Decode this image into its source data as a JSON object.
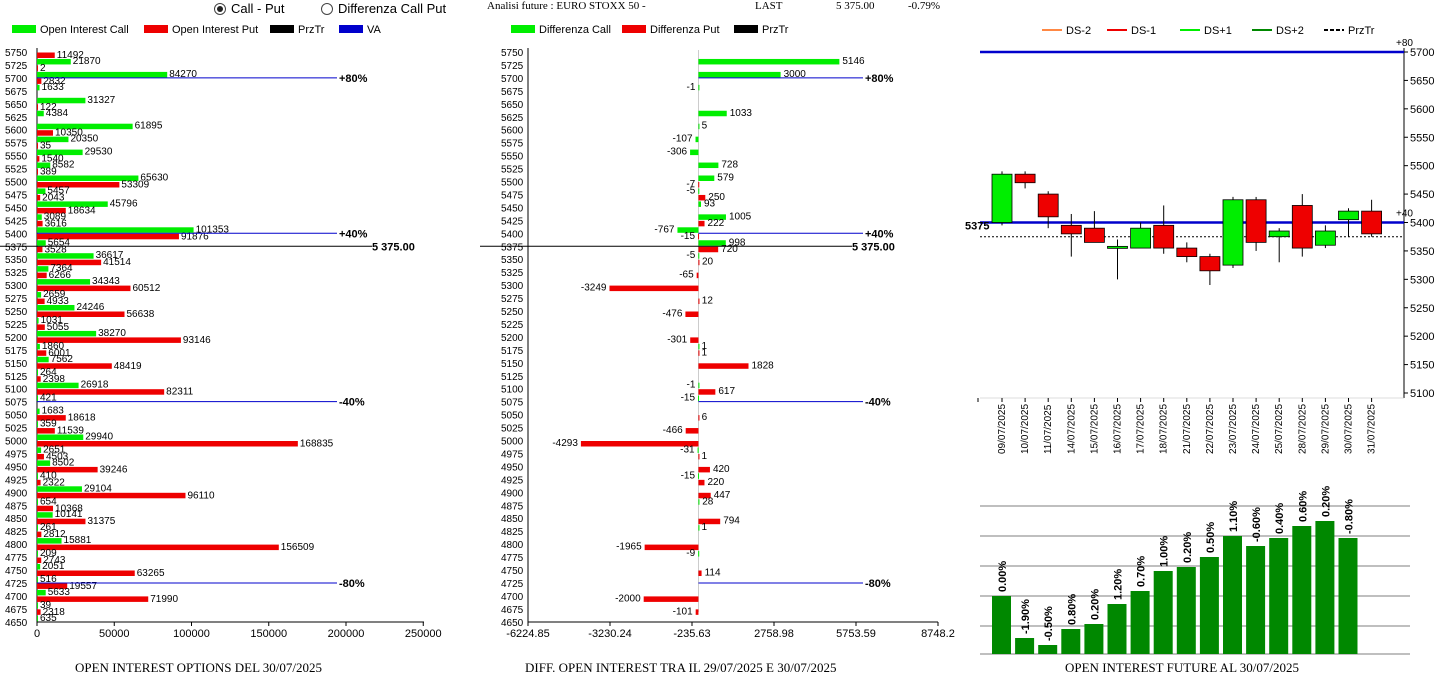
{
  "header": {
    "mode_call_put": "Call - Put",
    "mode_diff": "Differenza Call Put",
    "analysis_label": "Analisi future : EURO STOXX 50 -",
    "last_label": "LAST",
    "last_value": "5 375.00",
    "last_change": "-0.79%"
  },
  "colors": {
    "green": "#00ee00",
    "red": "#ee0000",
    "black": "#000000",
    "blue": "#0000cc",
    "darkgreen": "#008800",
    "orange": "#ff8844",
    "lightgreen": "#00ee00"
  },
  "chart_data": [
    {
      "type": "bar",
      "title": "OPEN INTEREST OPTIONS DEL 30/07/2025",
      "legend": [
        "Open Interest Call",
        "Open Interest Put",
        "PrzTr",
        "VA"
      ],
      "strikes": [
        5750,
        5725,
        5700,
        5675,
        5650,
        5625,
        5600,
        5575,
        5550,
        5525,
        5500,
        5475,
        5450,
        5425,
        5400,
        5375,
        5350,
        5325,
        5300,
        5275,
        5250,
        5225,
        5200,
        5175,
        5150,
        5125,
        5100,
        5075,
        5050,
        5025,
        5000,
        4975,
        4950,
        4925,
        4900,
        4875,
        4850,
        4825,
        4800,
        4775,
        4750,
        4725,
        4700,
        4675,
        4650
      ],
      "calls": [
        null,
        21870,
        84270,
        1633,
        31327,
        4384,
        61895,
        20350,
        29530,
        8582,
        65630,
        5457,
        45796,
        3089,
        101353,
        5654,
        36617,
        7364,
        34343,
        2659,
        24246,
        1031,
        38270,
        1860,
        7562,
        264,
        26918,
        421,
        1683,
        359,
        29940,
        2651,
        8502,
        410,
        29104,
        654,
        10141,
        261,
        15881,
        209,
        2051,
        516,
        5633,
        39,
        635
      ],
      "puts": [
        11492,
        2,
        2832,
        null,
        122,
        null,
        10350,
        35,
        1540,
        389,
        53309,
        2043,
        18634,
        3616,
        91876,
        3528,
        41514,
        6266,
        60512,
        4933,
        56638,
        5055,
        93146,
        6001,
        48419,
        2398,
        82311,
        null,
        18618,
        11539,
        168835,
        4503,
        39246,
        2322,
        96110,
        10368,
        31375,
        2812,
        156509,
        2743,
        63265,
        19557,
        71990,
        2318,
        null
      ],
      "price_line": 5375,
      "price_label": "5 375.00",
      "va_lines": [
        {
          "strike": 5700,
          "label": "+80%"
        },
        {
          "strike": 5400,
          "label": "+40%"
        },
        {
          "strike": 5075,
          "label": "-40%"
        },
        {
          "strike": 4725,
          "label": "-80%"
        }
      ],
      "x_ticks": [
        "0",
        "50000",
        "100000",
        "150000",
        "200000",
        "250000"
      ],
      "x_range": [
        0,
        250000
      ]
    },
    {
      "type": "bar",
      "title": "DIFF. OPEN INTEREST TRA IL 29/07/2025 E 30/07/2025",
      "legend": [
        "Differenza Call",
        "Differenza Put",
        "PrzTr"
      ],
      "strikes": [
        5750,
        5725,
        5700,
        5675,
        5650,
        5625,
        5600,
        5575,
        5550,
        5525,
        5500,
        5475,
        5450,
        5425,
        5400,
        5375,
        5350,
        5325,
        5300,
        5275,
        5250,
        5225,
        5200,
        5175,
        5150,
        5125,
        5100,
        5075,
        5050,
        5025,
        5000,
        4975,
        4950,
        4925,
        4900,
        4875,
        4850,
        4825,
        4800,
        4775,
        4750,
        4725,
        4700,
        4675,
        4650
      ],
      "diff_call": [
        null,
        5146,
        3000,
        -1,
        null,
        1033,
        5,
        -107,
        -306,
        728,
        579,
        -5,
        93,
        1005,
        -767,
        998,
        -5,
        null,
        null,
        null,
        null,
        null,
        null,
        1,
        null,
        null,
        -1,
        -15,
        null,
        null,
        null,
        -31,
        null,
        -15,
        null,
        28,
        null,
        1,
        null,
        -9,
        null,
        null,
        null,
        null,
        null
      ],
      "diff_put": [
        null,
        null,
        null,
        null,
        null,
        null,
        null,
        null,
        null,
        null,
        -7,
        250,
        null,
        222,
        -15,
        720,
        20,
        -65,
        -3249,
        12,
        -476,
        null,
        -301,
        1,
        1828,
        null,
        617,
        null,
        6,
        -466,
        -4293,
        1,
        420,
        220,
        447,
        null,
        794,
        null,
        -1965,
        null,
        114,
        null,
        -2000,
        -101,
        null
      ],
      "price_line": 5375,
      "price_label": "5 375.00",
      "va_lines": [
        {
          "strike": 5700,
          "label": "+80%"
        },
        {
          "strike": 5400,
          "label": "+40%"
        },
        {
          "strike": 5075,
          "label": "-40%"
        },
        {
          "strike": 4725,
          "label": "-80%"
        }
      ],
      "x_ticks": [
        "-6224.85",
        "-3230.24",
        "-235.63",
        "2758.98",
        "5753.59",
        "8748.2"
      ],
      "x_range": [
        -6224.85,
        8748.2
      ]
    },
    {
      "type": "candlestick",
      "legend": [
        "DS-2",
        "DS-1",
        "DS+1",
        "DS+2",
        "PrzTr"
      ],
      "dates": [
        "09/07/2025",
        "10/07/2025",
        "11/07/2025",
        "14/07/2025",
        "15/07/2025",
        "16/07/2025",
        "17/07/2025",
        "18/07/2025",
        "21/07/2025",
        "22/07/2025",
        "23/07/2025",
        "24/07/2025",
        "25/07/2025",
        "28/07/2025",
        "29/07/2025",
        "30/07/2025",
        "31/07/2025"
      ],
      "open": [
        5400,
        5485,
        5450,
        5395,
        5390,
        5355,
        5355,
        5395,
        5355,
        5340,
        5325,
        5440,
        5375,
        5430,
        5360,
        5405,
        5420
      ],
      "close": [
        5485,
        5470,
        5410,
        5380,
        5365,
        5358,
        5390,
        5355,
        5340,
        5315,
        5440,
        5365,
        5385,
        5355,
        5385,
        5420,
        5380
      ],
      "high": [
        5490,
        5490,
        5455,
        5415,
        5420,
        5370,
        5400,
        5430,
        5365,
        5345,
        5445,
        5445,
        5390,
        5450,
        5395,
        5425,
        5440
      ],
      "low": [
        5395,
        5460,
        5390,
        5340,
        5365,
        5300,
        5355,
        5345,
        5330,
        5290,
        5320,
        5350,
        5330,
        5340,
        5355,
        5375,
        5375
      ],
      "y_ticks": [
        5100,
        5150,
        5200,
        5250,
        5300,
        5350,
        5400,
        5450,
        5500,
        5550,
        5600,
        5650,
        5700
      ],
      "y_range": [
        5100,
        5700
      ],
      "blue_lines": [
        5700,
        5400
      ],
      "blue_labels": [
        "+80",
        "+40"
      ],
      "price_line": 5375,
      "price_label": "5375"
    },
    {
      "type": "bar",
      "title": "OPEN INTEREST FUTURE AL 30/07/2025",
      "values": [
        58,
        16,
        9,
        25,
        30,
        50,
        63,
        83,
        87,
        97,
        118,
        108,
        116,
        128,
        133,
        116
      ],
      "value_max": 150,
      "labels": [
        "0.00%",
        "-1.90%",
        "-0.50%",
        "0.80%",
        "0.20%",
        "1.20%",
        "0.70%",
        "1.00%",
        "0.20%",
        "0.50%",
        "1.10%",
        "-0.60%",
        "0.40%",
        "0.60%",
        "0.20%",
        "-0.80%"
      ]
    }
  ]
}
